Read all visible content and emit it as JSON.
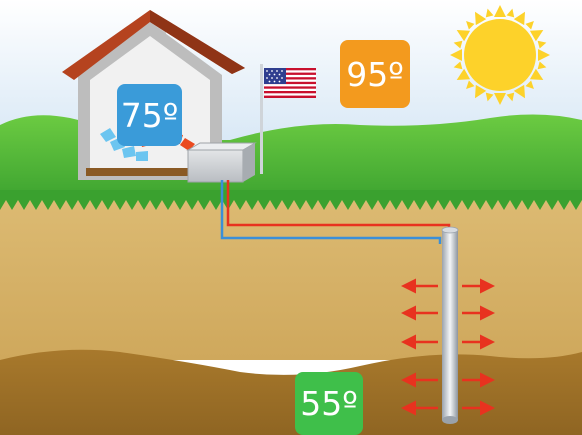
{
  "temperatures": {
    "indoor": {
      "label": "75º",
      "color": "#3a9bd9"
    },
    "outdoor": {
      "label": "95º",
      "color": "#f39a1e"
    },
    "ground": {
      "label": "55º",
      "color": "#3fbf4a"
    }
  },
  "icons": [
    "sun-icon",
    "flag-icon",
    "house-icon",
    "heat-pump-unit",
    "ground-well-pipe",
    "heat-arrow-icon"
  ],
  "colors": {
    "sky_top": "#ffffff",
    "sky_bottom": "#c9dff2",
    "grass": "#4db83a",
    "soil_upper": "#d9b56c",
    "soil_lower": "#a5792e",
    "sun": "#fdd22a",
    "hot_line": "#e8321f",
    "cold_line": "#3b8fd8",
    "roof": "#b5431f"
  }
}
